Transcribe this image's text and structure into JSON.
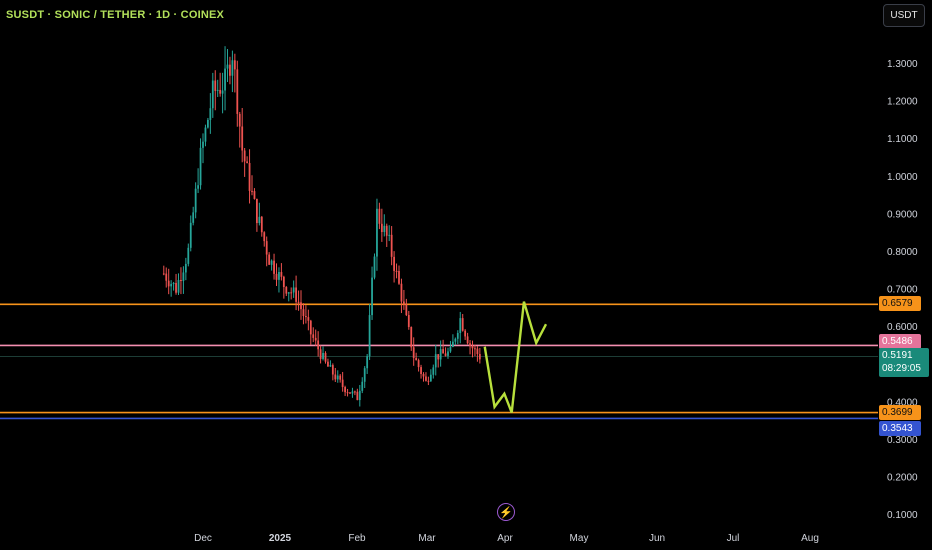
{
  "header": {
    "symbol_title": "SUSDT · SONIC / TETHER · 1D · COINEX",
    "currency_button": "USDT"
  },
  "colors": {
    "up": "#26a69a",
    "down": "#ef5350",
    "orange_line": "#f7931a",
    "pink_line": "#f48fb1",
    "blue_line": "#3454d1",
    "projection": "#b8e03c",
    "price_tag_bg": "#1a8a7a"
  },
  "y_axis": {
    "ticks": [
      "1.3000",
      "1.2000",
      "1.1000",
      "1.0000",
      "0.9000",
      "0.8000",
      "0.7000",
      "0.6000",
      "0.4000",
      "0.3000",
      "0.2000",
      "0.1000"
    ]
  },
  "x_axis": {
    "ticks": [
      {
        "label": "Dec",
        "bold": false
      },
      {
        "label": "2025",
        "bold": true
      },
      {
        "label": "Feb",
        "bold": false
      },
      {
        "label": "Mar",
        "bold": false
      },
      {
        "label": "Apr",
        "bold": false
      },
      {
        "label": "May",
        "bold": false
      },
      {
        "label": "Jun",
        "bold": false
      },
      {
        "label": "Jul",
        "bold": false
      },
      {
        "label": "Aug",
        "bold": false
      }
    ]
  },
  "levels": [
    {
      "name": "resistance",
      "price": 0.6579,
      "label": "0.6579",
      "color": "#f7931a"
    },
    {
      "name": "mid",
      "price": 0.5486,
      "label": "0.5486",
      "color": "#f48fb1"
    },
    {
      "name": "support",
      "price": 0.3699,
      "label": "0.3699",
      "color": "#f7931a"
    },
    {
      "name": "low",
      "price": 0.3543,
      "label": "0.3543",
      "color": "#3454d1"
    }
  ],
  "current_price": {
    "value": "0.5191",
    "countdown": "08:29:05"
  },
  "icons": {
    "bottom_icon": "lightning-bolt-icon"
  },
  "chart_data": {
    "type": "candlestick",
    "title": "SUSDT · SONIC / TETHER · 1D · COINEX",
    "ylim": [
      0.1,
      1.3
    ],
    "grid": false,
    "price_series": [
      {
        "date": "2024-11-15",
        "close": 0.74
      },
      {
        "date": "2024-11-20",
        "close": 0.7
      },
      {
        "date": "2024-11-25",
        "close": 0.8
      },
      {
        "date": "2024-11-30",
        "close": 1.05
      },
      {
        "date": "2024-12-05",
        "close": 1.22
      },
      {
        "date": "2024-12-10",
        "close": 1.25
      },
      {
        "date": "2024-12-13",
        "close": 1.33
      },
      {
        "date": "2024-12-17",
        "close": 1.07
      },
      {
        "date": "2024-12-22",
        "close": 0.92
      },
      {
        "date": "2024-12-28",
        "close": 0.78
      },
      {
        "date": "2025-01-03",
        "close": 0.71
      },
      {
        "date": "2025-01-08",
        "close": 0.68
      },
      {
        "date": "2025-01-14",
        "close": 0.58
      },
      {
        "date": "2025-01-20",
        "close": 0.5
      },
      {
        "date": "2025-01-27",
        "close": 0.44
      },
      {
        "date": "2025-02-02",
        "close": 0.41
      },
      {
        "date": "2025-02-06",
        "close": 0.52
      },
      {
        "date": "2025-02-10",
        "close": 0.9
      },
      {
        "date": "2025-02-15",
        "close": 0.82
      },
      {
        "date": "2025-02-20",
        "close": 0.68
      },
      {
        "date": "2025-02-25",
        "close": 0.52
      },
      {
        "date": "2025-03-02",
        "close": 0.45
      },
      {
        "date": "2025-03-06",
        "close": 0.52
      },
      {
        "date": "2025-03-12",
        "close": 0.53
      },
      {
        "date": "2025-03-16",
        "close": 0.62
      },
      {
        "date": "2025-03-20",
        "close": 0.55
      },
      {
        "date": "2025-03-24",
        "close": 0.5191
      }
    ],
    "projection": [
      {
        "date": "2025-03-26",
        "price": 0.545
      },
      {
        "date": "2025-03-30",
        "price": 0.385
      },
      {
        "date": "2025-04-03",
        "price": 0.42
      },
      {
        "date": "2025-04-06",
        "price": 0.37
      },
      {
        "date": "2025-04-11",
        "price": 0.665
      },
      {
        "date": "2025-04-16",
        "price": 0.555
      },
      {
        "date": "2025-04-20",
        "price": 0.605
      }
    ]
  }
}
